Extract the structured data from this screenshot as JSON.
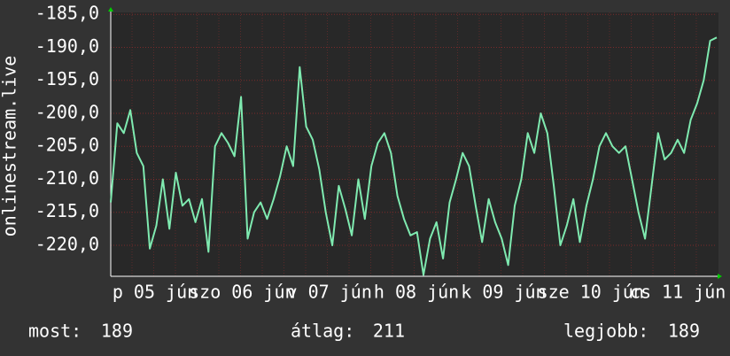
{
  "chart_data": {
    "type": "line",
    "y_label": "onlinestream.live",
    "x_labels": [
      "p 05 jún",
      "szo 06 jún",
      "v 07 jún",
      "h 08 jún",
      "k 09 jún",
      "sze 10 jún",
      "cs 11 jún"
    ],
    "series": [
      {
        "name": "onlinestream.live",
        "color": "#7feab0",
        "values": [
          -213.5,
          -201.5,
          -203,
          -199.5,
          -206,
          -208,
          -220.5,
          -217,
          -210,
          -217.5,
          -209,
          -214,
          -213,
          -216.5,
          -213,
          -221,
          -205,
          -203,
          -204.5,
          -206.5,
          -197.5,
          -219,
          -215,
          -213.5,
          -216,
          -213,
          -209.5,
          -205,
          -208,
          -193,
          -202,
          -204,
          -208.5,
          -215,
          -220,
          -211,
          -214.5,
          -218.5,
          -210,
          -216,
          -208,
          -204.5,
          -203,
          -206,
          -212.5,
          -216,
          -218.5,
          -218,
          -224.5,
          -219,
          -216.5,
          -222,
          -213.5,
          -210,
          -206,
          -208,
          -214,
          -219.5,
          -213,
          -216.5,
          -219,
          -223,
          -214,
          -210,
          -203,
          -206,
          -200,
          -203,
          -211,
          -220,
          -217,
          -213,
          -219.5,
          -214,
          -210,
          -205,
          -203,
          -205,
          -206,
          -205,
          -210,
          -215,
          -219,
          -211,
          -203,
          -207,
          -206,
          -204,
          -206,
          -201,
          -198.5,
          -195,
          -189,
          -188.5
        ]
      }
    ],
    "ylim": [
      -224.7,
      -184.7
    ],
    "yticks": [
      {
        "value": -185,
        "label": "-185,0"
      },
      {
        "value": -190,
        "label": "-190,0"
      },
      {
        "value": -195,
        "label": "-195,0"
      },
      {
        "value": -200,
        "label": "-200,0"
      },
      {
        "value": -205,
        "label": "-205,0"
      },
      {
        "value": -210,
        "label": "-210,0"
      },
      {
        "value": -215,
        "label": "-215,0"
      },
      {
        "value": -220,
        "label": "-220,0"
      }
    ],
    "grid": true,
    "stats": [
      {
        "label": "most:",
        "value": "189"
      },
      {
        "label": "átlag:",
        "value": "211"
      },
      {
        "label": "legjobb:",
        "value": "189"
      }
    ]
  }
}
